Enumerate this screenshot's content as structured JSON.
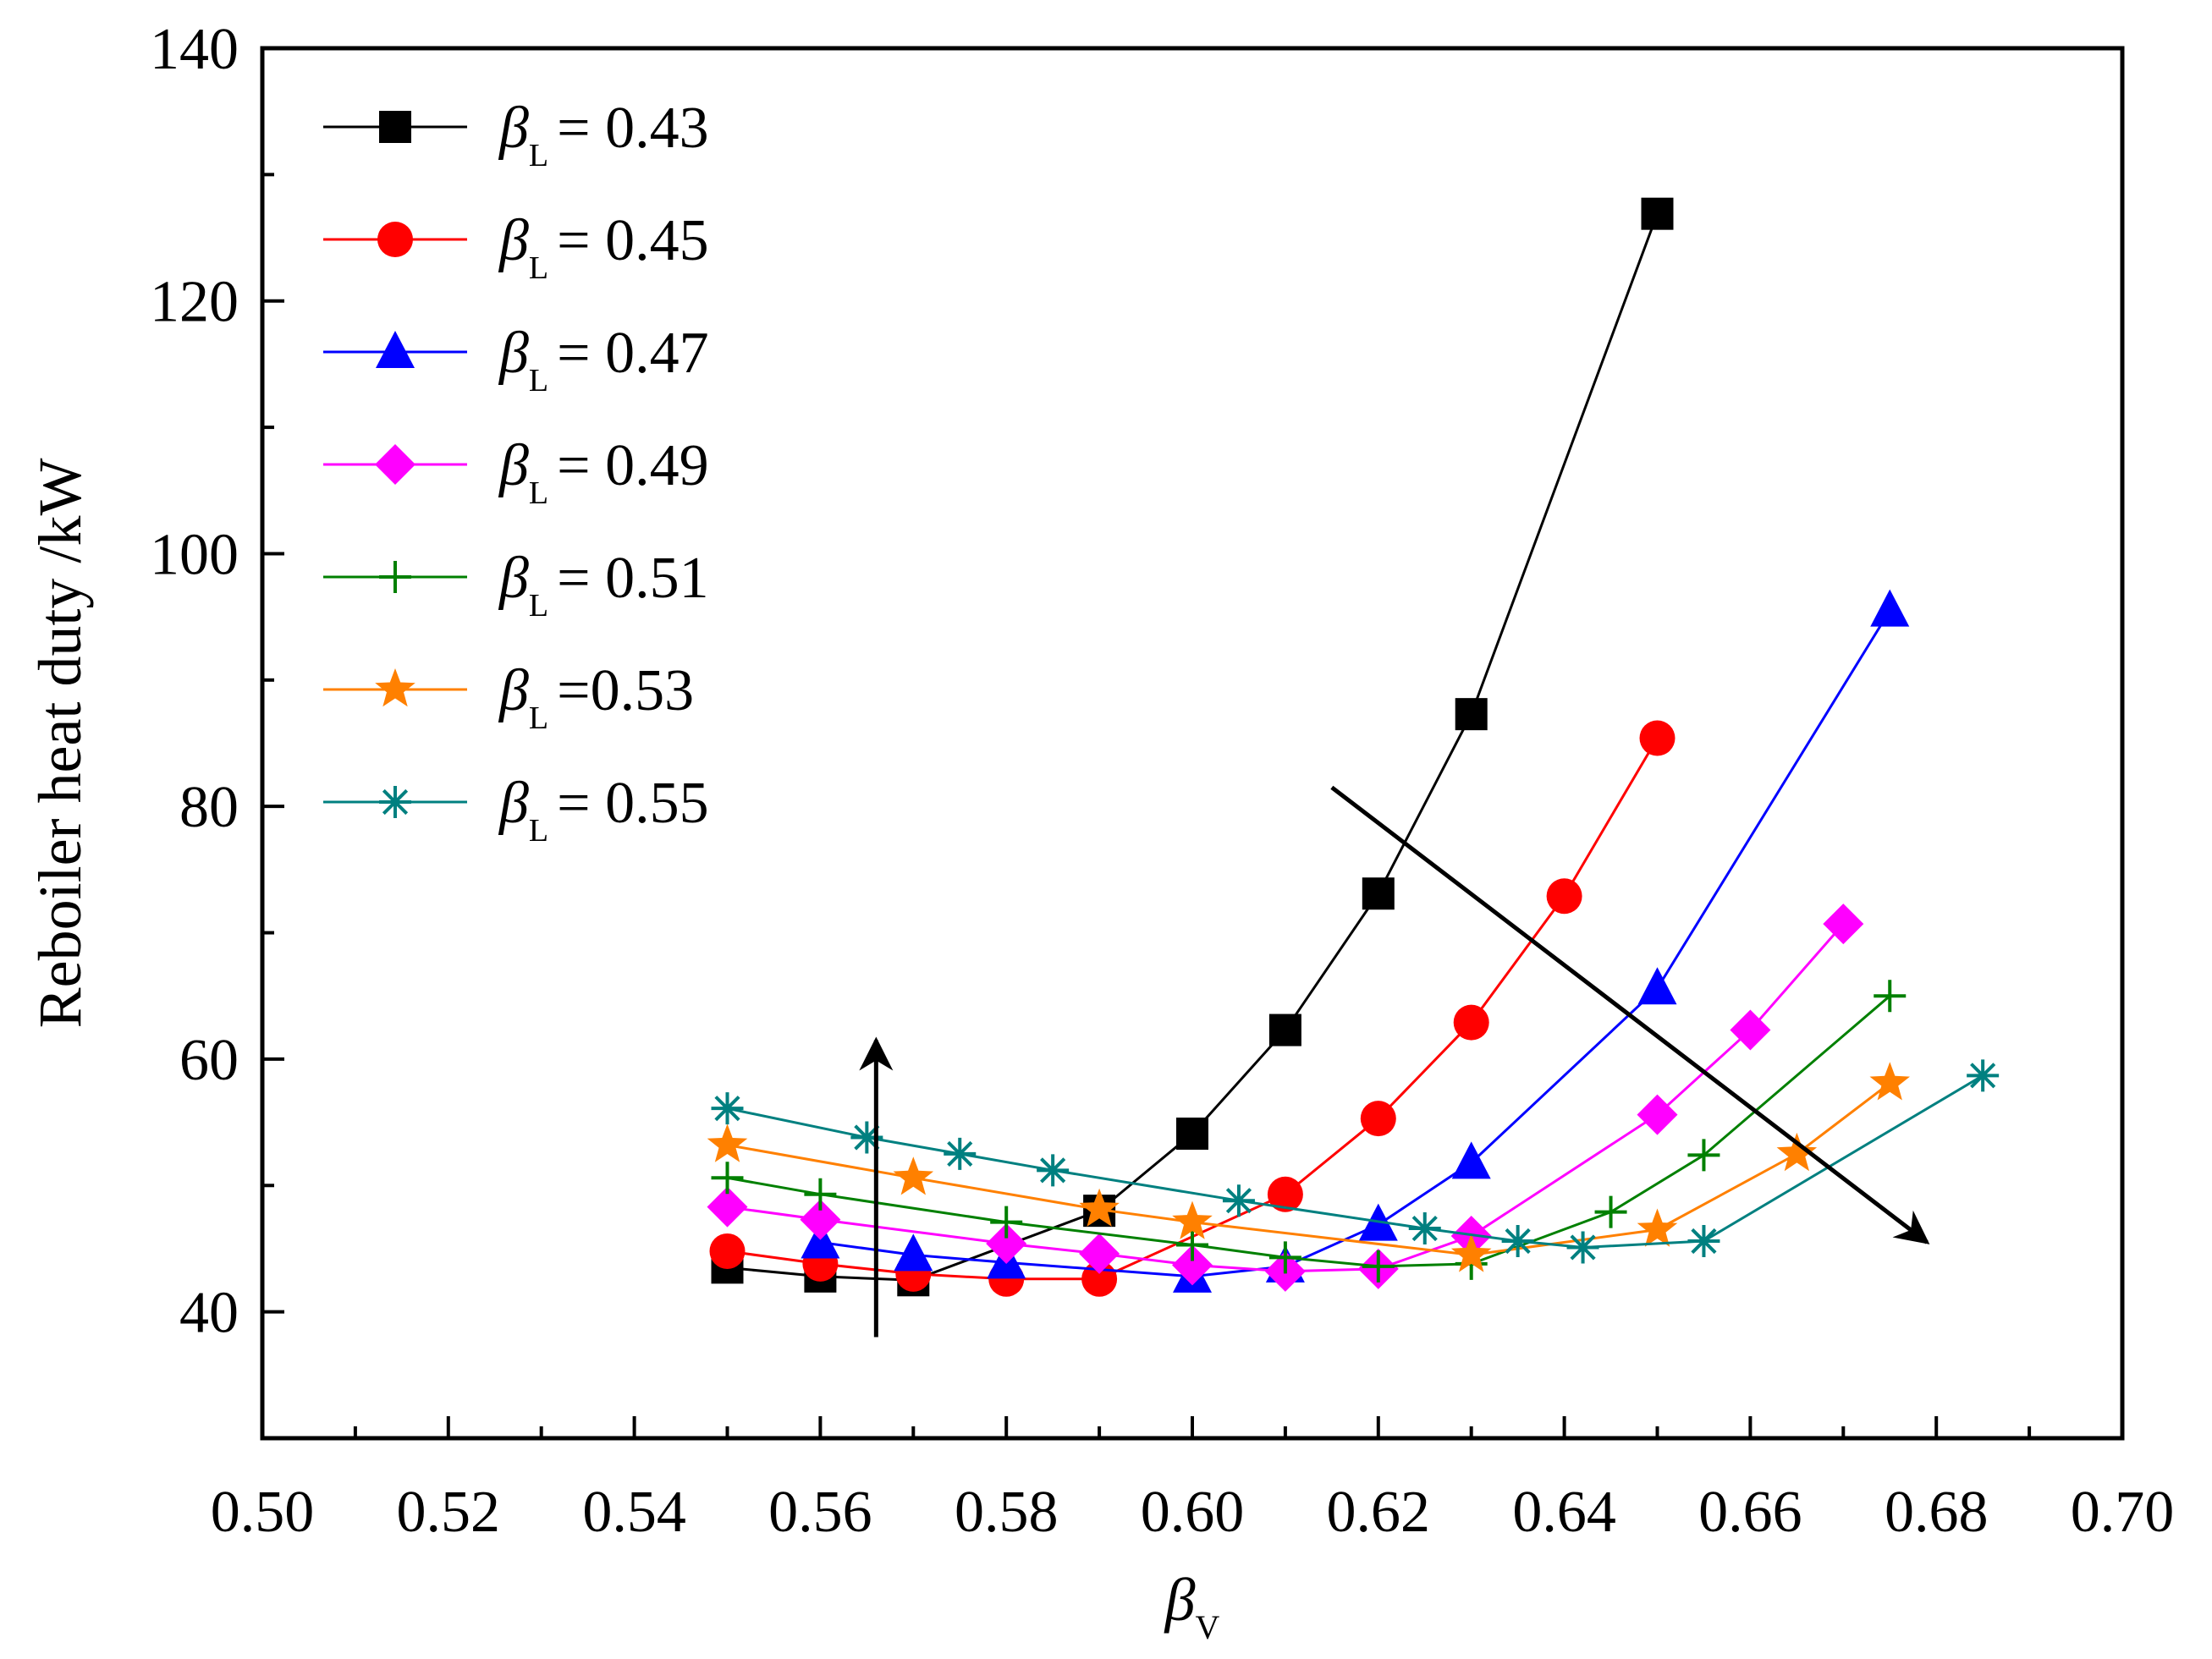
{
  "chart_data": {
    "type": "line",
    "title": "",
    "xlabel": "β",
    "xlabel_sub": "V",
    "ylabel": "Reboiler heat duty /kW",
    "xlim": [
      0.5,
      0.7
    ],
    "ylim": [
      30,
      140
    ],
    "xticks": [
      "0.50",
      "0.52",
      "0.54",
      "0.56",
      "0.58",
      "0.60",
      "0.62",
      "0.64",
      "0.66",
      "0.68",
      "0.70"
    ],
    "yticks": [
      "40",
      "60",
      "80",
      "100",
      "120",
      "140"
    ],
    "legend_position": "top-left",
    "legend_symbol": "β",
    "legend_sub": "L",
    "series": [
      {
        "name": "= 0.43",
        "color": "#000000",
        "marker": "square",
        "x": [
          0.55,
          0.56,
          0.57,
          0.59,
          0.6,
          0.61,
          0.62,
          0.63,
          0.65
        ],
        "y": [
          43.5,
          42.8,
          42.5,
          48.0,
          54.1,
          62.3,
          73.1,
          87.3,
          126.9
        ]
      },
      {
        "name": "= 0.45",
        "color": "#ff0000",
        "marker": "circle",
        "x": [
          0.55,
          0.56,
          0.57,
          0.58,
          0.59,
          0.61,
          0.62,
          0.63,
          0.64,
          0.65
        ],
        "y": [
          44.8,
          43.8,
          43.0,
          42.6,
          42.6,
          49.3,
          55.3,
          62.9,
          72.9,
          85.4
        ]
      },
      {
        "name": "= 0.47",
        "color": "#0000ff",
        "marker": "triangle",
        "x": [
          0.56,
          0.57,
          0.58,
          0.6,
          0.61,
          0.62,
          0.63,
          0.65,
          0.675
        ],
        "y": [
          45.5,
          44.5,
          43.9,
          42.8,
          43.6,
          46.9,
          51.8,
          65.6,
          95.5
        ]
      },
      {
        "name": "= 0.49",
        "color": "#ff00ff",
        "marker": "diamond",
        "x": [
          0.55,
          0.56,
          0.58,
          0.59,
          0.6,
          0.61,
          0.62,
          0.63,
          0.65,
          0.66,
          0.67
        ],
        "y": [
          48.3,
          47.3,
          45.4,
          44.6,
          43.7,
          43.2,
          43.4,
          46.0,
          55.6,
          62.3,
          70.7
        ]
      },
      {
        "name": "= 0.51",
        "color": "#008000",
        "marker": "plus",
        "x": [
          0.55,
          0.56,
          0.58,
          0.6,
          0.61,
          0.62,
          0.63,
          0.645,
          0.655,
          0.675
        ],
        "y": [
          50.6,
          49.3,
          47.1,
          45.3,
          44.3,
          43.6,
          43.8,
          47.9,
          52.4,
          65.0
        ]
      },
      {
        "name": "=0.53",
        "color": "#ff8000",
        "marker": "star",
        "x": [
          0.55,
          0.57,
          0.59,
          0.6,
          0.63,
          0.65,
          0.665,
          0.675
        ],
        "y": [
          53.2,
          50.6,
          48.1,
          47.1,
          44.5,
          46.5,
          52.5,
          58.1
        ]
      },
      {
        "name": "= 0.55",
        "color": "#008080",
        "marker": "asterisk",
        "x": [
          0.55,
          0.565,
          0.575,
          0.585,
          0.605,
          0.625,
          0.635,
          0.642,
          0.655,
          0.685
        ],
        "y": [
          56.1,
          53.8,
          52.5,
          51.2,
          48.8,
          46.6,
          45.6,
          45.1,
          45.6,
          58.7
        ]
      }
    ],
    "annotations": [
      {
        "type": "arrow",
        "direction": "up",
        "from": [
          0.566,
          38.0
        ],
        "to": [
          0.566,
          61.5
        ]
      },
      {
        "type": "arrow",
        "direction": "down-right",
        "from": [
          0.615,
          81.5
        ],
        "to": [
          0.679,
          45.5
        ]
      }
    ]
  }
}
